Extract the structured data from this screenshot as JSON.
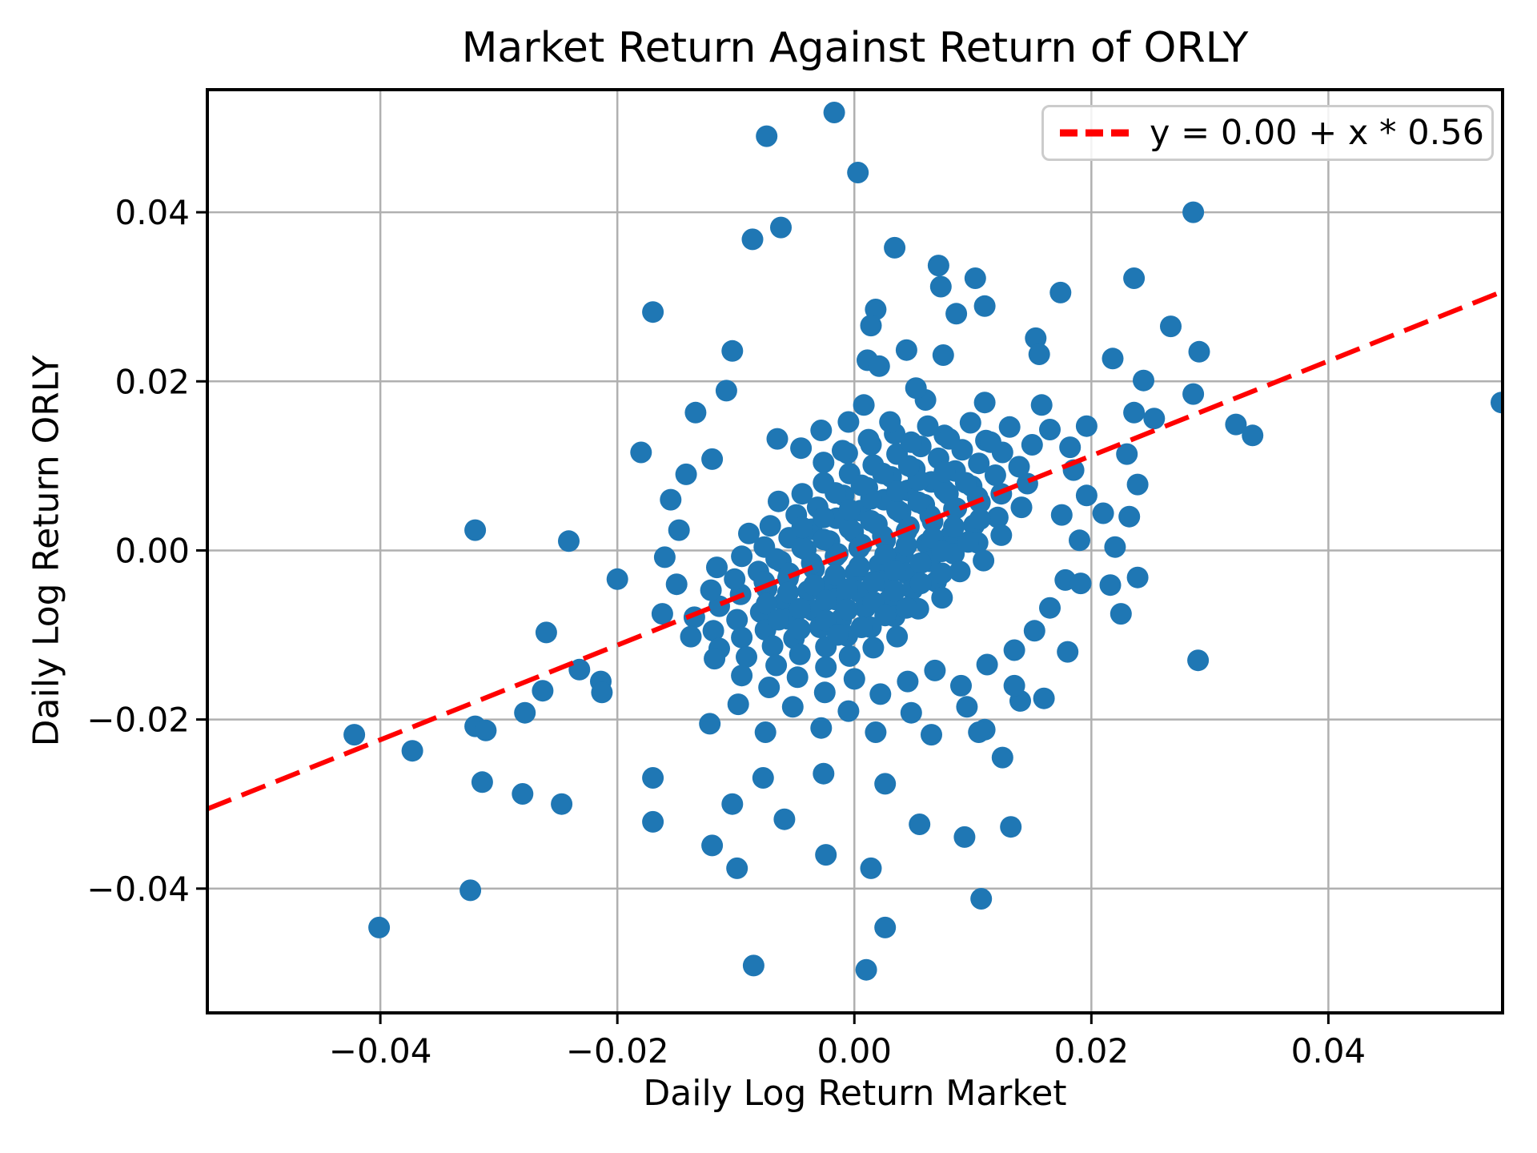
{
  "chart_data": {
    "type": "scatter",
    "title": "Market Return Against Return of ORLY",
    "xlabel": "Daily Log Return Market",
    "ylabel": "Daily Log Return ORLY",
    "xlim": [
      -0.0546,
      0.0547
    ],
    "ylim": [
      -0.0547,
      0.0545
    ],
    "x_ticks": [
      -0.04,
      -0.02,
      0.0,
      0.02,
      0.04
    ],
    "x_tick_labels": [
      "−0.04",
      "−0.02",
      "0.00",
      "0.02",
      "0.04"
    ],
    "y_ticks": [
      0.04,
      0.02,
      0.0,
      -0.02,
      -0.04
    ],
    "y_tick_labels": [
      "0.04",
      "0.02",
      "0.00",
      "−0.02",
      "−0.04"
    ],
    "grid": true,
    "legend": {
      "label": "y = 0.00 + x * 0.56",
      "position": "upper right"
    },
    "regression_line": {
      "intercept": 0.0,
      "slope": 0.56,
      "color": "#ff0000",
      "style": "dashed"
    },
    "marker": {
      "color": "#1f77b4",
      "radius_px": 13.5
    },
    "points": [
      [
        -0.0135,
        -0.0079
      ],
      [
        -0.0114,
        -0.0066
      ],
      [
        -0.0096,
        -0.0052
      ],
      [
        -0.0074,
        -0.0045
      ],
      [
        -0.0056,
        -0.0033
      ],
      [
        -0.0034,
        -0.0022
      ],
      [
        -0.0016,
        -0.0007
      ],
      [
        0.0004,
        0.0003
      ],
      [
        0.0026,
        0.0012
      ],
      [
        0.0044,
        0.0023
      ],
      [
        0.0066,
        0.0034
      ],
      [
        0.0084,
        0.0049
      ],
      [
        0.0106,
        0.0057
      ],
      [
        0.0124,
        0.0067
      ],
      [
        0.0146,
        0.0079
      ],
      [
        -0.0121,
        -0.0047
      ],
      [
        -0.0101,
        -0.0034
      ],
      [
        -0.0081,
        -0.0025
      ],
      [
        -0.0062,
        -0.0013
      ],
      [
        -0.0041,
        0.0001
      ],
      [
        -0.0021,
        0.0011
      ],
      [
        -0.0001,
        0.0022
      ],
      [
        0.0019,
        0.0031
      ],
      [
        0.0039,
        0.0045
      ],
      [
        0.0059,
        0.0054
      ],
      [
        0.0079,
        0.0067
      ],
      [
        0.0099,
        0.0076
      ],
      [
        0.0119,
        0.0089
      ],
      [
        0.0139,
        0.0099
      ],
      [
        -0.0119,
        -0.0095
      ],
      [
        -0.0099,
        -0.0082
      ],
      [
        -0.0079,
        -0.0073
      ],
      [
        -0.0059,
        -0.0061
      ],
      [
        -0.0039,
        -0.0048
      ],
      [
        -0.0019,
        -0.0039
      ],
      [
        0.0001,
        -0.0026
      ],
      [
        0.0021,
        -0.0017
      ],
      [
        0.0041,
        -0.0005
      ],
      [
        0.0061,
        0.0008
      ],
      [
        0.0081,
        0.0017
      ],
      [
        0.0101,
        0.003
      ],
      [
        0.0121,
        0.0039
      ],
      [
        0.0141,
        0.0051
      ],
      [
        -0.0116,
        -0.002
      ],
      [
        -0.0095,
        -0.0007
      ],
      [
        -0.0076,
        0.0004
      ],
      [
        -0.0055,
        0.0015
      ],
      [
        -0.0036,
        0.0025
      ],
      [
        -0.0015,
        0.0038
      ],
      [
        0.0005,
        0.0047
      ],
      [
        0.0025,
        0.006
      ],
      [
        0.0045,
        0.0071
      ],
      [
        0.0065,
        0.0081
      ],
      [
        0.0085,
        0.0094
      ],
      [
        0.0105,
        0.0103
      ],
      [
        0.0125,
        0.0116
      ],
      [
        -0.0114,
        -0.0116
      ],
      [
        -0.0095,
        -0.0103
      ],
      [
        -0.0075,
        -0.0094
      ],
      [
        -0.0056,
        -0.0081
      ],
      [
        -0.0035,
        -0.0071
      ],
      [
        -0.0016,
        -0.0058
      ],
      [
        0.0004,
        -0.0049
      ],
      [
        0.0024,
        -0.0036
      ],
      [
        0.0044,
        -0.0027
      ],
      [
        0.0064,
        -0.0013
      ],
      [
        0.0084,
        -0.0004
      ],
      [
        0.0104,
        0.0009
      ],
      [
        0.0124,
        0.0018
      ],
      [
        -0.0089,
        0.002
      ],
      [
        -0.0071,
        0.0029
      ],
      [
        -0.0049,
        0.0042
      ],
      [
        -0.0031,
        0.0051
      ],
      [
        -0.0009,
        0.0065
      ],
      [
        0.0011,
        0.0074
      ],
      [
        0.0031,
        0.0087
      ],
      [
        0.0051,
        0.0096
      ],
      [
        0.0071,
        0.0109
      ],
      [
        0.0091,
        0.0119
      ],
      [
        0.0111,
        0.013
      ],
      [
        -0.0091,
        -0.0126
      ],
      [
        -0.0069,
        -0.0113
      ],
      [
        -0.0051,
        -0.0104
      ],
      [
        -0.0029,
        -0.0091
      ],
      [
        -0.0011,
        -0.0081
      ],
      [
        0.0009,
        -0.0068
      ],
      [
        0.0029,
        -0.0059
      ],
      [
        0.0049,
        -0.0046
      ],
      [
        0.0069,
        -0.0037
      ],
      [
        0.0089,
        -0.0025
      ],
      [
        0.0109,
        -0.0012
      ],
      [
        -0.0064,
        0.0058
      ],
      [
        -0.0044,
        0.0067
      ],
      [
        -0.0026,
        0.008
      ],
      [
        -0.0004,
        0.0091
      ],
      [
        0.0016,
        0.0101
      ],
      [
        0.0036,
        0.0114
      ],
      [
        0.0056,
        0.0123
      ],
      [
        0.0076,
        0.0136
      ],
      [
        -0.0066,
        -0.0136
      ],
      [
        -0.0046,
        -0.0123
      ],
      [
        -0.0024,
        -0.0114
      ],
      [
        -0.0006,
        -0.0101
      ],
      [
        0.0014,
        -0.0091
      ],
      [
        0.0034,
        -0.0078
      ],
      [
        0.0054,
        -0.0069
      ],
      [
        0.0074,
        -0.0056
      ],
      [
        -0.0026,
        0.0104
      ],
      [
        -0.0006,
        0.0115
      ],
      [
        0.0014,
        0.0125
      ],
      [
        0.0034,
        0.0138
      ],
      [
        -0.0024,
        -0.0138
      ],
      [
        -0.0004,
        -0.0125
      ],
      [
        0.0016,
        -0.0115
      ],
      [
        0.0036,
        -0.0102
      ],
      [
        -0.0076,
        -0.0037
      ],
      [
        -0.0055,
        -0.0027
      ],
      [
        -0.0036,
        -0.0015
      ],
      [
        -0.0014,
        -0.0004
      ],
      [
        0.0006,
        0.0007
      ],
      [
        0.0024,
        0.0017
      ],
      [
        0.0046,
        0.0028
      ],
      [
        0.0064,
        0.0041
      ],
      [
        0.0086,
        0.005
      ],
      [
        0.0104,
        0.0063
      ],
      [
        -0.0074,
        -0.0063
      ],
      [
        -0.0056,
        -0.005
      ],
      [
        -0.0034,
        -0.0041
      ],
      [
        -0.0016,
        -0.0029
      ],
      [
        0.0004,
        -0.0019
      ],
      [
        0.0026,
        -0.0005
      ],
      [
        0.0044,
        0.0006
      ],
      [
        0.0066,
        0.0015
      ],
      [
        0.0084,
        0.0028
      ],
      [
        0.0106,
        0.0037
      ],
      [
        -0.0066,
        -0.001
      ],
      [
        -0.0044,
        0.0003
      ],
      [
        -0.0026,
        0.0013
      ],
      [
        -0.0004,
        0.0026
      ],
      [
        0.0014,
        0.0035
      ],
      [
        0.0036,
        0.0048
      ],
      [
        0.0054,
        0.0057
      ],
      [
        0.0076,
        0.0071
      ],
      [
        0.0094,
        0.008
      ],
      [
        -0.0064,
        -0.0082
      ],
      [
        -0.0046,
        -0.0069
      ],
      [
        -0.0024,
        -0.0059
      ],
      [
        -0.0006,
        -0.0046
      ],
      [
        0.0016,
        -0.0037
      ],
      [
        0.0034,
        -0.0024
      ],
      [
        0.0056,
        -0.0015
      ],
      [
        0.0074,
        -0.0001
      ],
      [
        0.0096,
        0.001
      ],
      [
        -0.0044,
        0.0027
      ],
      [
        -0.0026,
        0.0039
      ],
      [
        -0.0004,
        0.0048
      ],
      [
        0.0014,
        0.0061
      ],
      [
        0.0036,
        0.007
      ],
      [
        0.0054,
        0.0083
      ],
      [
        0.0076,
        0.0093
      ],
      [
        -0.0046,
        -0.0093
      ],
      [
        -0.0024,
        -0.0083
      ],
      [
        -0.0006,
        -0.007
      ],
      [
        0.0016,
        -0.0061
      ],
      [
        0.0034,
        -0.0048
      ],
      [
        0.0056,
        -0.0039
      ],
      [
        0.0074,
        -0.0027
      ],
      [
        -0.0016,
        0.0068
      ],
      [
        0.0006,
        0.0077
      ],
      [
        0.0024,
        0.0091
      ],
      [
        0.0046,
        0.01
      ],
      [
        -0.0014,
        -0.01
      ],
      [
        0.0006,
        -0.0091
      ],
      [
        0.0026,
        -0.0077
      ],
      [
        0.0044,
        -0.0068
      ],
      [
        -0.0065,
        0.0132
      ],
      [
        -0.0045,
        0.0121
      ],
      [
        -0.0028,
        0.0142
      ],
      [
        -0.001,
        0.0118
      ],
      [
        -0.0005,
        0.0152
      ],
      [
        0.0012,
        0.0131
      ],
      [
        0.003,
        0.0152
      ],
      [
        0.0048,
        0.0128
      ],
      [
        0.0062,
        0.0147
      ],
      [
        0.008,
        0.0132
      ],
      [
        0.0098,
        0.0151
      ],
      [
        0.0115,
        0.0128
      ],
      [
        0.0131,
        0.0146
      ],
      [
        0.015,
        0.0125
      ],
      [
        0.0165,
        0.0143
      ],
      [
        0.0182,
        0.0122
      ],
      [
        0.0196,
        0.0147
      ],
      [
        0.0008,
        0.0172
      ],
      [
        0.006,
        0.0178
      ],
      [
        0.011,
        0.0175
      ],
      [
        0.0158,
        0.0172
      ],
      [
        0.0185,
        0.0095
      ],
      [
        0.0196,
        0.0065
      ],
      [
        0.0175,
        0.0042
      ],
      [
        0.019,
        0.0012
      ],
      [
        -0.012,
        0.0108
      ],
      [
        -0.0142,
        0.009
      ],
      [
        -0.0155,
        0.006
      ],
      [
        -0.0148,
        0.0024
      ],
      [
        -0.016,
        -0.0008
      ],
      [
        0.0052,
        0.0192
      ],
      [
        -0.015,
        -0.004
      ],
      [
        -0.0162,
        -0.0075
      ],
      [
        -0.0138,
        -0.0102
      ],
      [
        -0.0118,
        -0.0128
      ],
      [
        -0.0095,
        -0.0148
      ],
      [
        -0.0072,
        -0.0162
      ],
      [
        -0.0048,
        -0.015
      ],
      [
        -0.0025,
        -0.0168
      ],
      [
        0.0,
        -0.0152
      ],
      [
        0.0022,
        -0.017
      ],
      [
        0.0045,
        -0.0155
      ],
      [
        0.0068,
        -0.0142
      ],
      [
        0.009,
        -0.016
      ],
      [
        0.0112,
        -0.0135
      ],
      [
        0.0135,
        -0.0118
      ],
      [
        0.0152,
        -0.0095
      ],
      [
        0.0165,
        -0.0068
      ],
      [
        0.0178,
        -0.0035
      ],
      [
        -0.0005,
        -0.019
      ],
      [
        -0.0052,
        -0.0185
      ],
      [
        0.0048,
        -0.0192
      ],
      [
        0.0095,
        -0.0185
      ],
      [
        -0.0098,
        -0.0182
      ],
      [
        0.014,
        -0.0178
      ],
      [
        -0.0028,
        -0.021
      ],
      [
        0.0018,
        -0.0215
      ],
      [
        -0.0075,
        -0.0215
      ],
      [
        0.0065,
        -0.0218
      ],
      [
        -0.0122,
        -0.0205
      ],
      [
        0.011,
        -0.0212
      ],
      [
        -0.0017,
        0.0518
      ],
      [
        -0.0074,
        0.049
      ],
      [
        0.0003,
        0.0447
      ],
      [
        -0.0062,
        0.0382
      ],
      [
        -0.0086,
        0.0368
      ],
      [
        0.0034,
        0.0358
      ],
      [
        -0.017,
        0.0282
      ],
      [
        0.0071,
        0.0337
      ],
      [
        0.0073,
        0.0312
      ],
      [
        0.0102,
        0.0322
      ],
      [
        0.011,
        0.0289
      ],
      [
        0.0086,
        0.028
      ],
      [
        0.0174,
        0.0305
      ],
      [
        0.0018,
        0.0285
      ],
      [
        0.0014,
        0.0266
      ],
      [
        -0.0103,
        0.0236
      ],
      [
        0.0153,
        0.0251
      ],
      [
        0.0156,
        0.0232
      ],
      [
        0.0044,
        0.0237
      ],
      [
        0.0075,
        0.0231
      ],
      [
        0.0011,
        0.0225
      ],
      [
        0.0021,
        0.0218
      ],
      [
        -0.0108,
        0.0189
      ],
      [
        -0.0134,
        0.0163
      ],
      [
        0.0286,
        0.04
      ],
      [
        0.0236,
        0.0322
      ],
      [
        0.0267,
        0.0265
      ],
      [
        0.0218,
        0.0227
      ],
      [
        0.0244,
        0.0201
      ],
      [
        0.0291,
        0.0235
      ],
      [
        0.0286,
        0.0185
      ],
      [
        0.0236,
        0.0163
      ],
      [
        0.0253,
        0.0156
      ],
      [
        0.0322,
        0.0149
      ],
      [
        0.0336,
        0.0136
      ],
      [
        0.023,
        0.0114
      ],
      [
        0.021,
        0.0044
      ],
      [
        0.0232,
        0.004
      ],
      [
        0.0239,
        0.0078
      ],
      [
        0.022,
        0.0004
      ],
      [
        0.0239,
        -0.0032
      ],
      [
        0.0216,
        -0.0041
      ],
      [
        0.0225,
        -0.0075
      ],
      [
        0.0191,
        -0.0039
      ],
      [
        0.0546,
        0.0175
      ],
      [
        0.029,
        -0.013
      ],
      [
        0.0135,
        -0.016
      ],
      [
        0.016,
        -0.0175
      ],
      [
        0.0105,
        -0.0215
      ],
      [
        0.0125,
        -0.0245
      ],
      [
        0.018,
        -0.012
      ],
      [
        -0.032,
        0.0024
      ],
      [
        -0.0241,
        0.0011
      ],
      [
        -0.02,
        -0.0034
      ],
      [
        -0.026,
        -0.0097
      ],
      [
        -0.0232,
        -0.0141
      ],
      [
        -0.0214,
        -0.0155
      ],
      [
        -0.0213,
        -0.0168
      ],
      [
        -0.0422,
        -0.0218
      ],
      [
        -0.0373,
        -0.0237
      ],
      [
        -0.032,
        -0.0208
      ],
      [
        -0.0311,
        -0.0213
      ],
      [
        -0.0278,
        -0.0192
      ],
      [
        -0.0263,
        -0.0166
      ],
      [
        -0.0314,
        -0.0274
      ],
      [
        -0.028,
        -0.0288
      ],
      [
        -0.0324,
        -0.0402
      ],
      [
        -0.0401,
        -0.0446
      ],
      [
        -0.018,
        0.0116
      ],
      [
        -0.0247,
        -0.03
      ],
      [
        -0.017,
        -0.0269
      ],
      [
        -0.017,
        -0.0321
      ],
      [
        -0.012,
        -0.0349
      ],
      [
        -0.0103,
        -0.03
      ],
      [
        -0.0099,
        -0.0376
      ],
      [
        -0.0077,
        -0.0269
      ],
      [
        -0.0059,
        -0.0318
      ],
      [
        -0.0026,
        -0.0264
      ],
      [
        -0.0024,
        -0.036
      ],
      [
        0.0014,
        -0.0376
      ],
      [
        0.0026,
        -0.0276
      ],
      [
        0.0055,
        -0.0324
      ],
      [
        0.0093,
        -0.0339
      ],
      [
        0.0132,
        -0.0327
      ],
      [
        0.0107,
        -0.0412
      ],
      [
        0.0026,
        -0.0446
      ],
      [
        -0.0085,
        -0.0491
      ],
      [
        0.001,
        -0.0496
      ]
    ]
  },
  "colors": {
    "grid": "#b0b0b0",
    "spine": "#000000",
    "text": "#000000",
    "legend_border": "#cccccc"
  }
}
